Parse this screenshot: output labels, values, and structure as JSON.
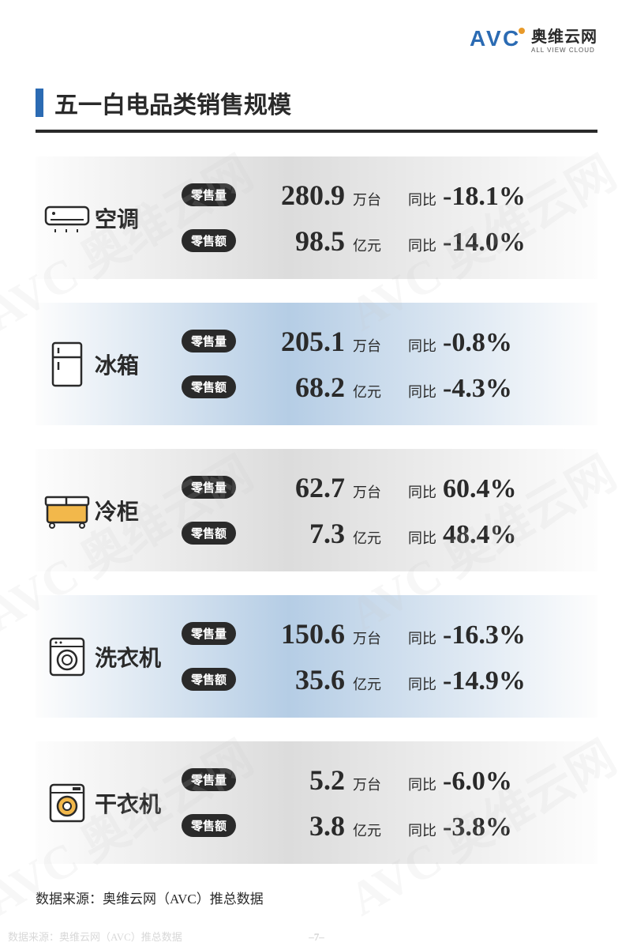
{
  "logo": {
    "abbr": "AVC",
    "cn": "奥维云网",
    "en": "ALL VIEW CLOUD",
    "dot_color": "#e89a2a",
    "text_color": "#2b6bb3"
  },
  "title": "五一白电品类销售规模",
  "title_marker_color": "#2b6bb3",
  "divider_color": "#2a2a2a",
  "metric_labels": {
    "volume": "零售量",
    "sales": "零售额",
    "yoy": "同比"
  },
  "units": {
    "volume": "万台",
    "sales": "亿元"
  },
  "categories": [
    {
      "name": "空调",
      "icon": "ac",
      "bg": "grad-gray",
      "volume": {
        "value": "280.9",
        "yoy": "-18.1%"
      },
      "sales": {
        "value": "98.5",
        "yoy": "-14.0%"
      }
    },
    {
      "name": "冰箱",
      "icon": "fridge",
      "bg": "grad-blue",
      "volume": {
        "value": "205.1",
        "yoy": "-0.8%"
      },
      "sales": {
        "value": "68.2",
        "yoy": "-4.3%"
      }
    },
    {
      "name": "冷柜",
      "icon": "freezer",
      "bg": "grad-gray",
      "volume": {
        "value": "62.7",
        "yoy": "60.4%"
      },
      "sales": {
        "value": "7.3",
        "yoy": "48.4%"
      }
    },
    {
      "name": "洗衣机",
      "icon": "washer",
      "bg": "grad-blue",
      "volume": {
        "value": "150.6",
        "yoy": "-16.3%"
      },
      "sales": {
        "value": "35.6",
        "yoy": "-14.9%"
      }
    },
    {
      "name": "干衣机",
      "icon": "dryer",
      "bg": "grad-gray",
      "volume": {
        "value": "5.2",
        "yoy": "-6.0%"
      },
      "sales": {
        "value": "3.8",
        "yoy": "-3.8%"
      }
    }
  ],
  "icon_colors": {
    "stroke": "#2a2a2a",
    "freezer_fill": "#f2b84b",
    "dryer_fill": "#f2b84b"
  },
  "source": "数据来源：奥维云网（AVC）推总数据",
  "page_number": "–7–",
  "footer_source": "数据来源：奥维云网（AVC）推总数据",
  "text_color": "#2a2a2a",
  "pill_bg": "#2a2a2a",
  "pill_fg": "#ffffff",
  "value_font": "Times New Roman",
  "value_fontsize": 36,
  "yoy_fontsize": 34,
  "name_fontsize": 28,
  "title_fontsize": 30
}
